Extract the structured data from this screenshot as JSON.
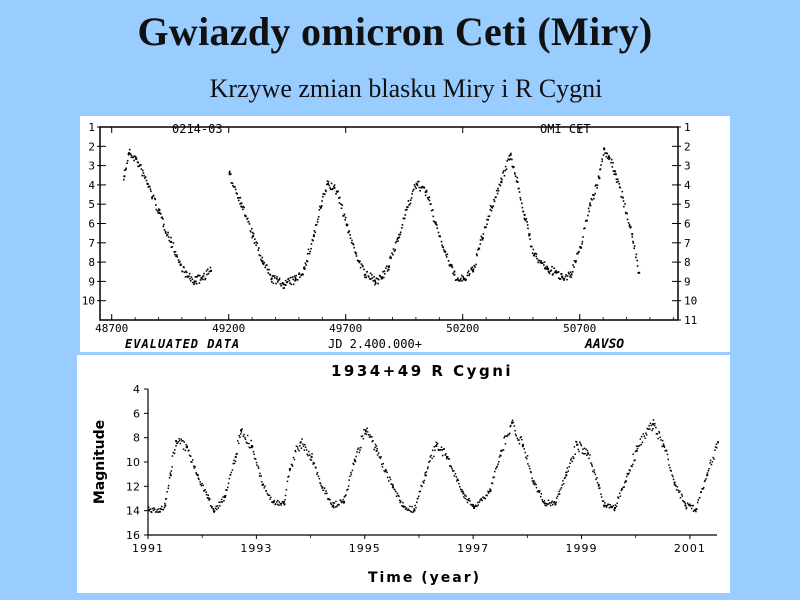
{
  "slide": {
    "title": "Gwiazdy omicron Ceti (Miry)",
    "subtitle": "Krzywe zmian blasku Miry i R Cygni"
  },
  "chart_data": [
    {
      "type": "scatter",
      "labels": {
        "top_left": "0214-03",
        "top_right": "OMI CET",
        "bottom_left": "EVALUATED DATA",
        "bottom_center": "JD 2.400.000+",
        "bottom_right": "AAVSO"
      },
      "xlim": [
        48650,
        51120
      ],
      "ylim": [
        1,
        11
      ],
      "y_inverted": true,
      "x_ticks": [
        48700,
        49200,
        49700,
        50200,
        50700
      ],
      "y_ticks_left": [
        1,
        2,
        3,
        4,
        5,
        6,
        7,
        8,
        9,
        10
      ],
      "y_ticks_right": [
        1,
        2,
        3,
        4,
        5,
        6,
        7,
        8,
        9,
        10,
        11
      ],
      "series": [
        {
          "x": [
            48750,
            48770,
            48800,
            48850,
            48900,
            48950,
            48990,
            49020,
            49050,
            49080,
            49120,
            49160,
            49200,
            49250,
            49300,
            49340,
            49380,
            49430,
            49480,
            49520,
            49560,
            49590,
            49620,
            49660,
            49700,
            49740,
            49780,
            49820,
            49850,
            49880,
            49920,
            49960,
            50000,
            50040,
            50080,
            50120,
            50160,
            50180,
            50200,
            50240,
            50280,
            50320,
            50360,
            50400,
            50430,
            50460,
            50480,
            50500,
            50560,
            50620,
            50660,
            50700,
            50740,
            50780,
            50800,
            50820,
            50850,
            50880,
            50920,
            50950
          ],
          "y": [
            3.5,
            2.3,
            2.6,
            3.9,
            5.4,
            6.9,
            8.1,
            8.7,
            8.95,
            8.8,
            8.4,
            null,
            3.4,
            4.9,
            6.6,
            7.9,
            8.8,
            9.1,
            8.9,
            8.3,
            6.6,
            5.1,
            3.9,
            4.3,
            6.0,
            7.5,
            8.6,
            8.9,
            8.8,
            8.2,
            6.7,
            5.1,
            3.9,
            4.3,
            5.9,
            7.4,
            8.6,
            8.9,
            8.85,
            8.4,
            6.7,
            5.1,
            3.8,
            2.4,
            3.8,
            5.5,
            6.5,
            7.6,
            8.3,
            8.7,
            8.6,
            7.2,
            5.0,
            3.6,
            2.1,
            2.5,
            3.4,
            4.6,
            6.5,
            8.5
          ]
        }
      ]
    },
    {
      "type": "scatter",
      "title": "1934+49 R Cygni",
      "xlabel": "Time (year)",
      "ylabel": "Magnitude",
      "xlim": [
        1991,
        2001.5
      ],
      "ylim": [
        4,
        16
      ],
      "y_inverted": true,
      "x_ticks": [
        1991,
        1993,
        1995,
        1997,
        1999,
        2001
      ],
      "y_ticks": [
        4,
        6,
        8,
        10,
        12,
        14,
        16
      ],
      "series": [
        {
          "x": [
            1991.0,
            1991.2,
            1991.3,
            1991.4,
            1991.5,
            1991.7,
            1991.9,
            1992.1,
            1992.2,
            1992.4,
            1992.6,
            1992.7,
            1992.9,
            1993.1,
            1993.3,
            1993.5,
            1993.6,
            1993.8,
            1994.0,
            1994.2,
            1994.4,
            1994.6,
            1994.8,
            1995.0,
            1995.2,
            1995.5,
            1995.7,
            1995.9,
            1996.1,
            1996.3,
            1996.5,
            1996.8,
            1997.0,
            1997.3,
            1997.5,
            1997.7,
            1997.9,
            1998.1,
            1998.3,
            1998.5,
            1998.7,
            1998.9,
            1999.1,
            1999.3,
            1999.4,
            1999.6,
            1999.8,
            2000.0,
            2000.3,
            2000.5,
            2000.7,
            2000.9,
            2001.1,
            2001.3,
            2001.5
          ],
          "y": [
            13.9,
            14.0,
            13.5,
            11.0,
            8.2,
            8.7,
            11.0,
            12.9,
            14.0,
            12.8,
            9.5,
            7.3,
            8.6,
            11.8,
            13.2,
            13.4,
            10.5,
            8.3,
            9.5,
            12.0,
            13.5,
            13.2,
            9.8,
            7.3,
            9.0,
            12.0,
            13.6,
            13.9,
            11.0,
            8.6,
            9.5,
            12.5,
            13.7,
            12.3,
            9.0,
            6.7,
            8.5,
            11.5,
            13.3,
            13.4,
            11.0,
            8.5,
            9.2,
            11.8,
            13.5,
            13.7,
            11.5,
            9.0,
            6.8,
            8.6,
            11.6,
            13.5,
            13.8,
            11.0,
            8.3
          ]
        }
      ]
    }
  ]
}
